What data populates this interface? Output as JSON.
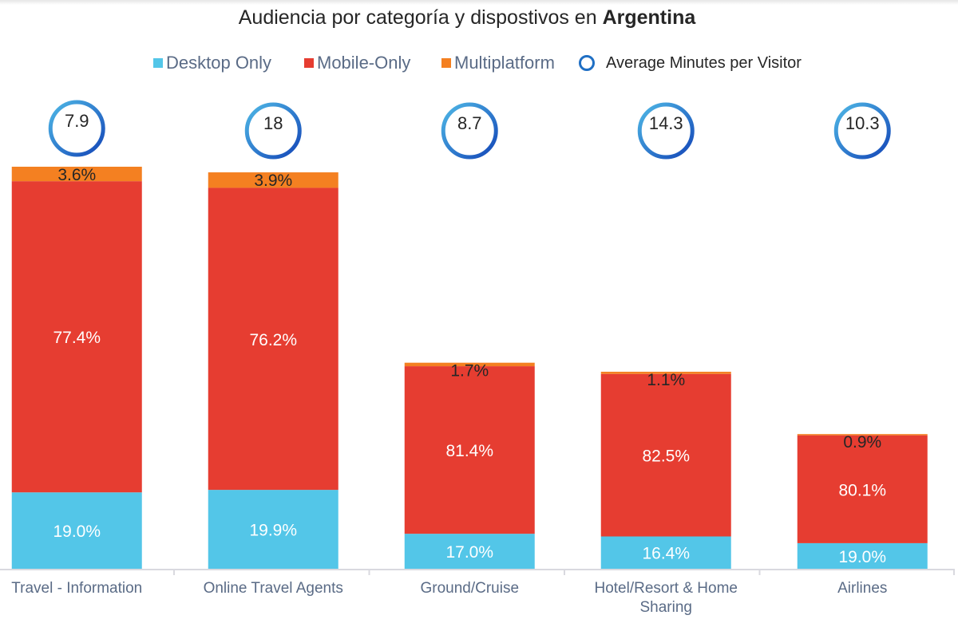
{
  "chart_data": {
    "type": "bar",
    "stacked": true,
    "title": "Audiencia por categoría y dispostivos en",
    "title_bold": "Argentina",
    "xlabel": "",
    "ylabel": "",
    "grid": false,
    "legend_position": "top",
    "categories": [
      "Travel - Information",
      "Online Travel Agents",
      "Ground/Cruise",
      "Hotel/Resort & Home Sharing",
      "Airlines"
    ],
    "category_lines": [
      [
        "Travel - Information"
      ],
      [
        "Online Travel Agents"
      ],
      [
        "Ground/Cruise"
      ],
      [
        "Hotel/Resort & Home",
        "Sharing"
      ],
      [
        "Airlines"
      ]
    ],
    "relative_total": [
      100,
      98.6,
      51.2,
      49.0,
      33.5
    ],
    "series": [
      {
        "name": "Desktop Only",
        "color": "#53c6e8",
        "label_color": "#ffffff",
        "values": [
          19.0,
          19.9,
          17.0,
          16.4,
          19.0
        ],
        "labels": [
          "19.0%",
          "19.9%",
          "17.0%",
          "16.4%",
          "19.0%"
        ]
      },
      {
        "name": "Mobile-Only",
        "color": "#e63d31",
        "label_color": "#ffffff",
        "values": [
          77.4,
          76.2,
          81.4,
          82.5,
          80.1
        ],
        "labels": [
          "77.4%",
          "76.2%",
          "81.4%",
          "82.5%",
          "80.1%"
        ]
      },
      {
        "name": "Multiplatform",
        "color": "#f48021",
        "label_color": "#262626",
        "values": [
          3.6,
          3.9,
          1.7,
          1.1,
          0.9
        ],
        "labels": [
          "3.6%",
          "3.9%",
          "1.7%",
          "1.1%",
          "0.9%"
        ]
      }
    ],
    "marker_series": {
      "name": "Average Minutes per Visitor",
      "color_light": "#4fb8e6",
      "color_dark": "#1447b8",
      "values": [
        7.9,
        18,
        8.7,
        14.3,
        10.3
      ],
      "labels": [
        "7.9",
        "18",
        "8.7",
        "14.3",
        "10.3"
      ]
    }
  }
}
